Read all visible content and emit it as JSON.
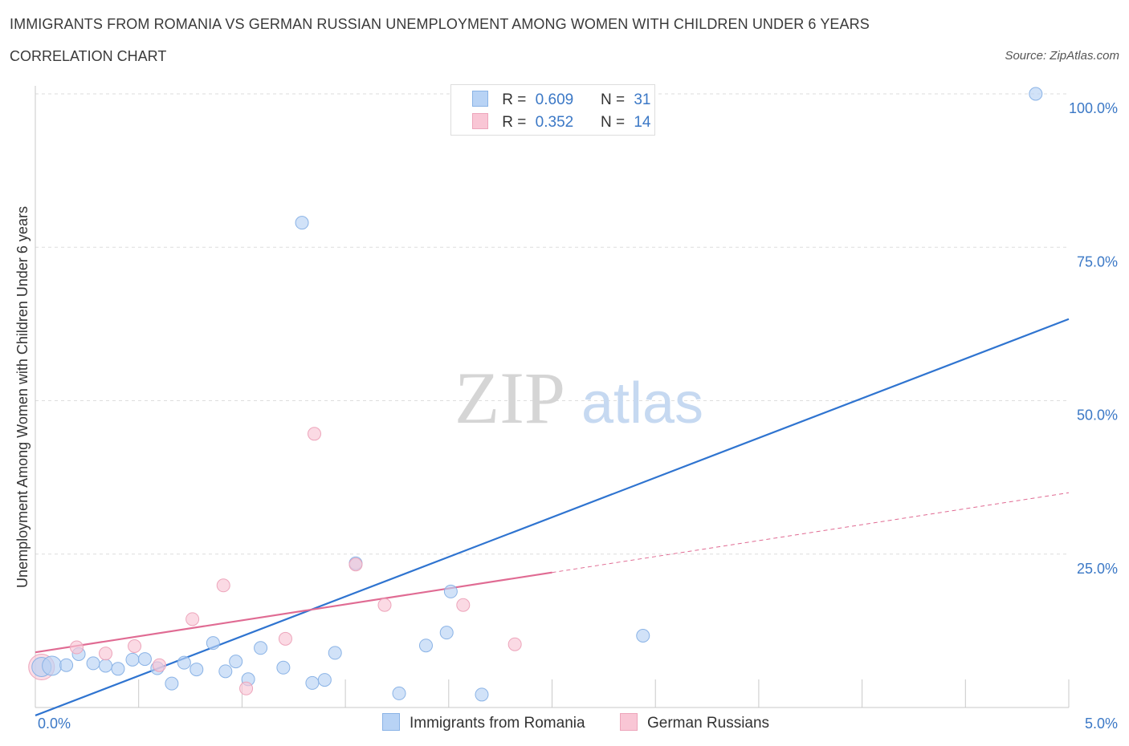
{
  "header": {
    "title": "IMMIGRANTS FROM ROMANIA VS GERMAN RUSSIAN UNEMPLOYMENT AMONG WOMEN WITH CHILDREN UNDER 6 YEARS",
    "subtitle": "CORRELATION CHART",
    "source": "Source: ZipAtlas.com"
  },
  "watermark": {
    "zip": "ZIP",
    "atlas": "atlas"
  },
  "legend_top": {
    "r_label": "R =",
    "n_label": "N =",
    "rows": [
      {
        "r": "0.609",
        "n": "31",
        "color": "#b8d3f5"
      },
      {
        "r": "0.352",
        "n": "14",
        "color": "#f9c6d5"
      }
    ]
  },
  "colors": {
    "blue_fill": "#b8d3f5",
    "blue_stroke": "#8ab3e6",
    "blue_line": "#2f74d0",
    "pink_fill": "#f9c6d5",
    "pink_stroke": "#eda5bb",
    "pink_line": "#e06b93",
    "tick_label": "#3b78c6"
  },
  "chart_data": {
    "type": "scatter",
    "title": "IMMIGRANTS FROM ROMANIA VS GERMAN RUSSIAN UNEMPLOYMENT AMONG WOMEN WITH CHILDREN UNDER 6 YEARS",
    "xlabel": "",
    "ylabel": "Unemployment Among Women with Children Under 6 years",
    "xlim": [
      0,
      5
    ],
    "ylim": [
      0,
      100
    ],
    "x_tick_labels": [
      "0.0%",
      "5.0%"
    ],
    "y_tick_labels": [
      "25.0%",
      "50.0%",
      "75.0%",
      "100.0%"
    ],
    "y_ticks": [
      25,
      50,
      75,
      100
    ],
    "grid": true,
    "legend_position": "bottom",
    "series": [
      {
        "name": "Immigrants from Romania",
        "color": "#b8d3f5",
        "points": [
          [
            0.03,
            6.6
          ],
          [
            0.08,
            6.8
          ],
          [
            0.15,
            6.9
          ],
          [
            0.21,
            8.7
          ],
          [
            0.28,
            7.2
          ],
          [
            0.34,
            6.8
          ],
          [
            0.4,
            6.3
          ],
          [
            0.47,
            7.8
          ],
          [
            0.53,
            7.9
          ],
          [
            0.59,
            6.4
          ],
          [
            0.66,
            3.9
          ],
          [
            0.72,
            7.3
          ],
          [
            0.78,
            6.2
          ],
          [
            0.86,
            10.5
          ],
          [
            0.92,
            5.9
          ],
          [
            0.97,
            7.5
          ],
          [
            1.03,
            4.6
          ],
          [
            1.09,
            9.7
          ],
          [
            1.2,
            6.5
          ],
          [
            1.29,
            79.0
          ],
          [
            1.34,
            4.0
          ],
          [
            1.4,
            4.5
          ],
          [
            1.45,
            8.9
          ],
          [
            1.55,
            23.5
          ],
          [
            1.76,
            2.3
          ],
          [
            1.89,
            10.1
          ],
          [
            1.99,
            12.2
          ],
          [
            2.01,
            18.9
          ],
          [
            2.16,
            2.1
          ],
          [
            2.94,
            11.7
          ],
          [
            4.84,
            100.0
          ]
        ],
        "trend": {
          "x": [
            0.0,
            5.0
          ],
          "y": [
            -1.3,
            63.3
          ]
        }
      },
      {
        "name": "German Russians",
        "color": "#f9c6d5",
        "points": [
          [
            0.03,
            6.8
          ],
          [
            0.2,
            9.8
          ],
          [
            0.34,
            8.8
          ],
          [
            0.48,
            10.0
          ],
          [
            0.6,
            6.9
          ],
          [
            0.76,
            14.4
          ],
          [
            0.91,
            19.9
          ],
          [
            1.02,
            3.1
          ],
          [
            1.21,
            11.2
          ],
          [
            1.35,
            44.6
          ],
          [
            1.55,
            23.3
          ],
          [
            1.69,
            16.7
          ],
          [
            2.07,
            16.7
          ],
          [
            2.32,
            10.3
          ]
        ],
        "trend": {
          "x": [
            0.0,
            2.5
          ],
          "y": [
            9.0,
            22.0
          ]
        },
        "trend_extension": {
          "x": [
            2.5,
            5.0
          ],
          "y": [
            22.0,
            35.0
          ]
        }
      }
    ]
  }
}
